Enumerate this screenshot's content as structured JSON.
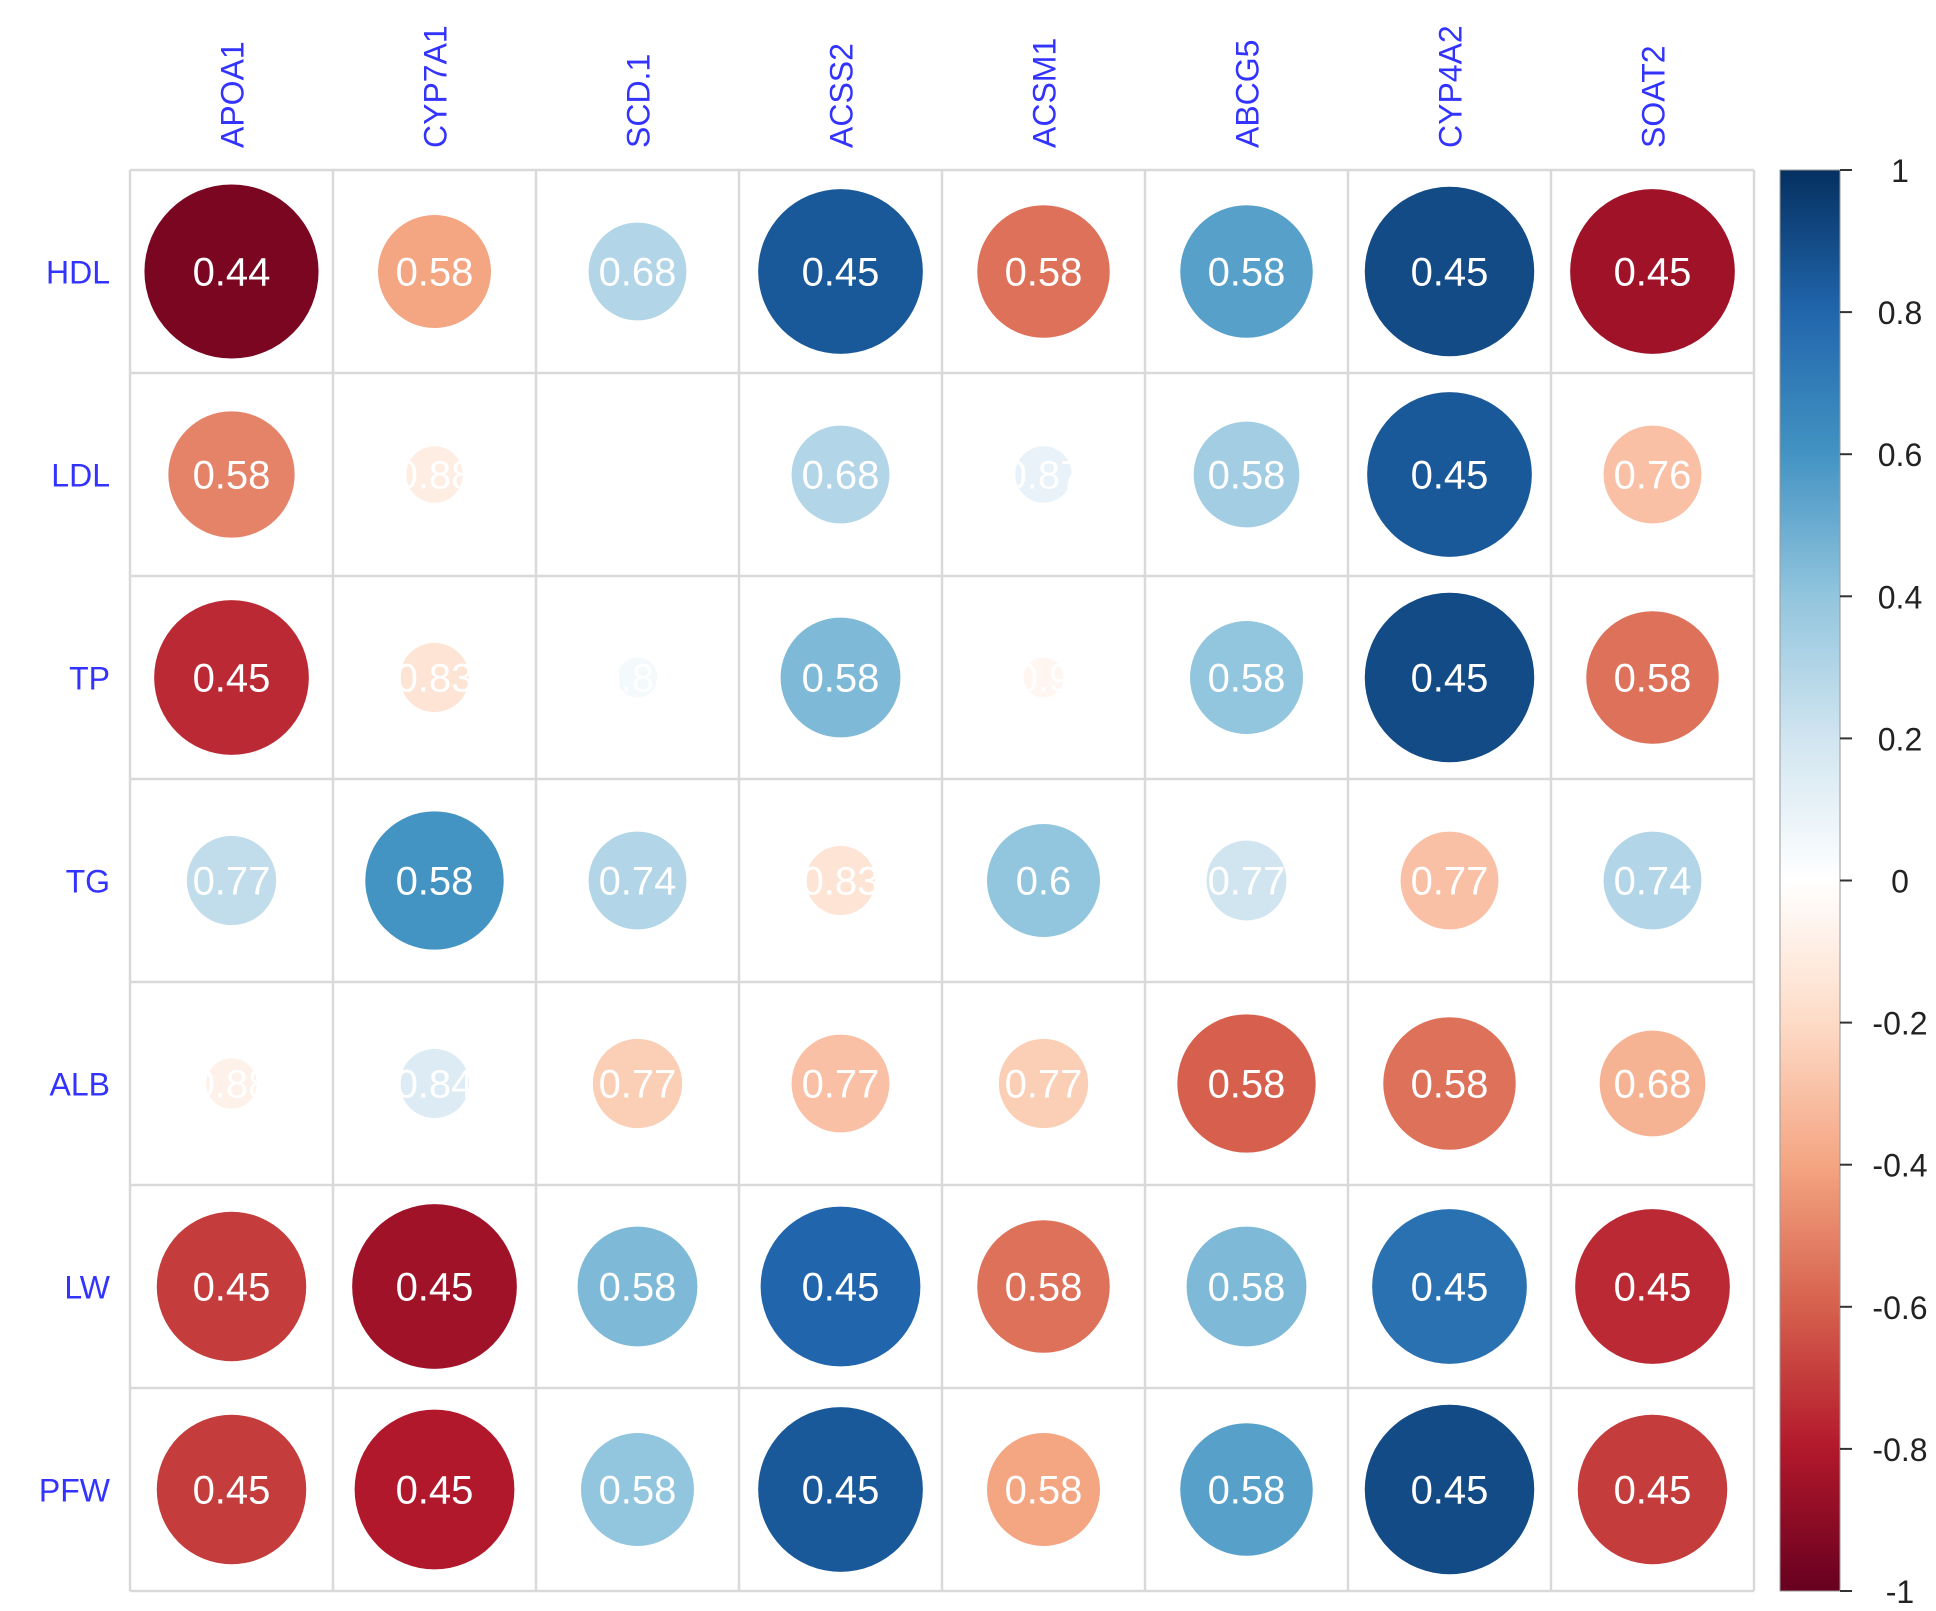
{
  "chart_data": {
    "type": "heatmap",
    "style": "correlation circle plot",
    "title": "",
    "columns": [
      "APOA1",
      "CYP7A1",
      "SCD.1",
      "ACSS2",
      "ACSM1",
      "ABCG5",
      "CYP4A2",
      "SOAT2"
    ],
    "rows": [
      "HDL",
      "LDL",
      "TP",
      "TG",
      "ALB",
      "LW",
      "PFW"
    ],
    "correlations": [
      [
        -0.95,
        -0.4,
        0.3,
        0.85,
        -0.55,
        0.55,
        0.9,
        -0.85
      ],
      [
        -0.5,
        -0.1,
        0.0,
        0.3,
        0.1,
        0.35,
        0.85,
        -0.3
      ],
      [
        -0.75,
        -0.15,
        0.05,
        0.45,
        -0.05,
        0.4,
        0.9,
        -0.55
      ],
      [
        0.25,
        0.6,
        0.3,
        -0.15,
        0.4,
        0.2,
        -0.3,
        0.3
      ],
      [
        -0.08,
        0.15,
        -0.25,
        -0.3,
        -0.25,
        -0.6,
        -0.55,
        -0.35
      ],
      [
        -0.7,
        -0.85,
        0.45,
        0.8,
        -0.55,
        0.45,
        0.75,
        -0.75
      ],
      [
        -0.7,
        -0.8,
        0.4,
        0.85,
        -0.4,
        0.55,
        0.9,
        -0.7
      ]
    ],
    "cell_labels": [
      [
        "0.44",
        "0.58",
        "0.68",
        "0.45",
        "0.58",
        "0.58",
        "0.45",
        "0.45"
      ],
      [
        "0.58",
        "0.88",
        "",
        "0.68",
        "0.87",
        "0.58",
        "0.45",
        "0.76"
      ],
      [
        "0.45",
        "0.83",
        "0.88",
        "0.58",
        "0.9",
        "0.58",
        "0.45",
        "0.58"
      ],
      [
        "0.77",
        "0.58",
        "0.74",
        "0.83",
        "0.6",
        "0.77",
        "0.77",
        "0.74"
      ],
      [
        "0.88",
        "0.84",
        "0.77",
        "0.77",
        "0.77",
        "0.58",
        "0.58",
        "0.68"
      ],
      [
        "0.45",
        "0.45",
        "0.58",
        "0.45",
        "0.58",
        "0.58",
        "0.45",
        "0.45"
      ],
      [
        "0.45",
        "0.45",
        "0.58",
        "0.45",
        "0.58",
        "0.58",
        "0.45",
        "0.45"
      ]
    ],
    "colorbar": {
      "range": [
        -1,
        1
      ],
      "ticks": [
        "1",
        "0.8",
        "0.6",
        "0.4",
        "0.2",
        "0",
        "-0.2",
        "-0.4",
        "-0.6",
        "-0.8",
        "-1"
      ],
      "tick_values": [
        1,
        0.8,
        0.6,
        0.4,
        0.2,
        0,
        -0.2,
        -0.4,
        -0.6,
        -0.8,
        -1
      ]
    },
    "colors": {
      "scale": [
        "#67001F",
        "#B2182B",
        "#D6604D",
        "#F4A582",
        "#FDDBC7",
        "#FFFFFF",
        "#D1E5F0",
        "#92C5DE",
        "#4393C3",
        "#2166AC",
        "#053061"
      ],
      "label_color": "#3333FF",
      "grid_color": "#D9D9D9",
      "cell_text_color": "#FFFFFF"
    },
    "legend": "right"
  }
}
